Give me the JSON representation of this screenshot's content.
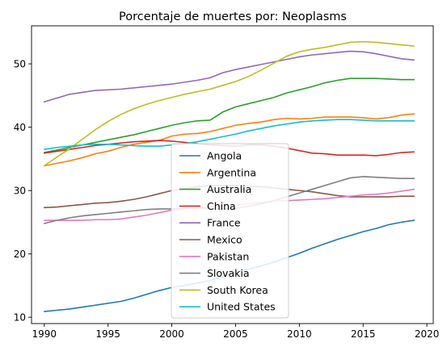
{
  "chart_data": {
    "type": "line",
    "title": "Porcentaje de muertes por: Neoplasms",
    "xlabel": "",
    "ylabel": "",
    "xlim": [
      1989,
      2020.5
    ],
    "ylim": [
      9,
      56
    ],
    "xticks": [
      1990,
      1995,
      2000,
      2005,
      2010,
      2015,
      2020
    ],
    "yticks": [
      10,
      20,
      30,
      40,
      50
    ],
    "grid": false,
    "legend_position": "center",
    "x": [
      1990,
      1991,
      1992,
      1993,
      1994,
      1995,
      1996,
      1997,
      1998,
      1999,
      2000,
      2001,
      2002,
      2003,
      2004,
      2005,
      2006,
      2007,
      2008,
      2009,
      2010,
      2011,
      2012,
      2013,
      2014,
      2015,
      2016,
      2017,
      2018,
      2019
    ],
    "series": [
      {
        "name": "Angola",
        "color": "#1f77b4",
        "values": [
          10.9,
          11.1,
          11.3,
          11.6,
          11.9,
          12.2,
          12.5,
          13.0,
          13.6,
          14.2,
          14.7,
          15.0,
          15.4,
          15.8,
          16.4,
          17.1,
          17.6,
          18.1,
          18.7,
          19.4,
          20.1,
          20.9,
          21.6,
          22.3,
          22.9,
          23.5,
          24.0,
          24.6,
          25.0,
          25.3
        ]
      },
      {
        "name": "Argentina",
        "color": "#ff7f0e",
        "values": [
          33.9,
          34.3,
          34.7,
          35.2,
          35.8,
          36.2,
          36.8,
          37.3,
          37.6,
          37.9,
          38.6,
          38.9,
          39.0,
          39.3,
          39.8,
          40.3,
          40.6,
          40.8,
          41.2,
          41.4,
          41.3,
          41.4,
          41.6,
          41.6,
          41.6,
          41.5,
          41.3,
          41.5,
          41.9,
          42.1
        ]
      },
      {
        "name": "Australia",
        "color": "#2ca02c",
        "values": [
          36.0,
          36.4,
          36.8,
          37.2,
          37.6,
          38.0,
          38.4,
          38.8,
          39.3,
          39.8,
          40.3,
          40.7,
          41.0,
          41.1,
          42.4,
          43.2,
          43.7,
          44.2,
          44.7,
          45.4,
          45.9,
          46.4,
          47.0,
          47.4,
          47.7,
          47.7,
          47.7,
          47.6,
          47.5,
          47.5
        ]
      },
      {
        "name": "China",
        "color": "#d62728",
        "values": [
          35.9,
          36.2,
          36.5,
          36.8,
          37.1,
          37.3,
          37.5,
          37.7,
          37.8,
          37.9,
          37.8,
          37.6,
          37.4,
          37.2,
          37.1,
          37.0,
          37.2,
          37.2,
          37.0,
          36.7,
          36.3,
          35.9,
          35.8,
          35.6,
          35.6,
          35.6,
          35.5,
          35.7,
          36.0,
          36.1
        ]
      },
      {
        "name": "France",
        "color": "#9467bd",
        "values": [
          44.0,
          44.6,
          45.2,
          45.5,
          45.8,
          45.9,
          46.0,
          46.2,
          46.4,
          46.6,
          46.8,
          47.1,
          47.4,
          47.8,
          48.6,
          49.1,
          49.5,
          49.9,
          50.3,
          50.7,
          51.1,
          51.4,
          51.6,
          51.8,
          52.0,
          51.9,
          51.6,
          51.2,
          50.8,
          50.6
        ]
      },
      {
        "name": "Mexico",
        "color": "#8c564b",
        "values": [
          27.3,
          27.4,
          27.6,
          27.8,
          28.0,
          28.1,
          28.3,
          28.6,
          29.0,
          29.5,
          30.0,
          30.3,
          30.6,
          30.8,
          30.8,
          30.8,
          30.7,
          30.6,
          30.4,
          30.2,
          30.0,
          29.8,
          29.5,
          29.2,
          29.0,
          29.0,
          29.0,
          29.0,
          29.1,
          29.1
        ]
      },
      {
        "name": "Pakistan",
        "color": "#e377c2",
        "values": [
          25.3,
          25.3,
          25.3,
          25.3,
          25.4,
          25.4,
          25.5,
          25.8,
          26.1,
          26.5,
          26.9,
          27.1,
          27.3,
          27.4,
          27.6,
          27.7,
          27.9,
          28.1,
          28.3,
          28.4,
          28.5,
          28.6,
          28.7,
          28.9,
          29.1,
          29.3,
          29.4,
          29.6,
          29.9,
          30.2
        ]
      },
      {
        "name": "Slovakia",
        "color": "#7f7f7f",
        "values": [
          24.8,
          25.3,
          25.7,
          26.0,
          26.2,
          26.4,
          26.6,
          26.8,
          27.0,
          27.1,
          27.1,
          27.2,
          27.2,
          27.2,
          27.1,
          27.2,
          27.5,
          27.9,
          28.4,
          29.0,
          29.6,
          30.2,
          30.8,
          31.4,
          32.0,
          32.2,
          32.1,
          32.0,
          31.9,
          31.9
        ]
      },
      {
        "name": "South Korea",
        "color": "#bcbd22",
        "values": [
          33.9,
          35.3,
          36.6,
          38.1,
          39.6,
          40.9,
          42.0,
          42.9,
          43.6,
          44.2,
          44.7,
          45.2,
          45.6,
          46.0,
          46.6,
          47.2,
          48.0,
          49.0,
          50.1,
          51.2,
          51.9,
          52.3,
          52.6,
          53.0,
          53.4,
          53.5,
          53.4,
          53.2,
          53.0,
          52.8
        ]
      },
      {
        "name": "United States",
        "color": "#17becf",
        "values": [
          36.5,
          36.8,
          37.0,
          37.2,
          37.3,
          37.3,
          37.2,
          37.1,
          37.0,
          37.0,
          37.2,
          37.4,
          37.7,
          38.1,
          38.5,
          38.9,
          39.4,
          39.8,
          40.2,
          40.5,
          40.8,
          41.0,
          41.1,
          41.2,
          41.2,
          41.1,
          41.0,
          41.0,
          41.0,
          41.0
        ]
      }
    ]
  }
}
